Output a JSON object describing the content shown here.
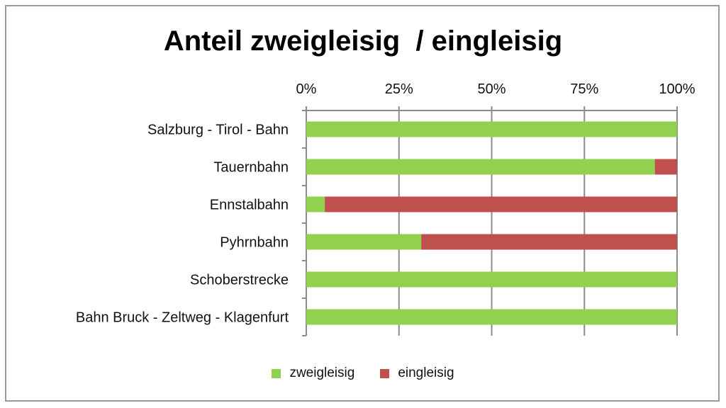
{
  "chart_data": {
    "type": "bar",
    "orientation": "horizontal",
    "stacked": "percent",
    "title": "Anteil zweigleisig  / eingleisig",
    "categories": [
      "Salzburg - Tirol - Bahn",
      "Tauernbahn",
      "Ennstalbahn",
      "Pyhrnbahn",
      "Schoberstrecke",
      "Bahn Bruck - Zeltweg - Klagenfurt"
    ],
    "series": [
      {
        "name": "zweigleisig",
        "color": "#92d050",
        "values": [
          100,
          94,
          5,
          31,
          100,
          100
        ]
      },
      {
        "name": "eingleisig",
        "color": "#c0504d",
        "values": [
          0,
          6,
          95,
          69,
          0,
          0
        ]
      }
    ],
    "xlim": [
      0,
      100
    ],
    "x_ticks": [
      "0%",
      "25%",
      "50%",
      "75%",
      "100%"
    ],
    "x_axis_position": "top",
    "grid": true,
    "legend_position": "bottom"
  }
}
